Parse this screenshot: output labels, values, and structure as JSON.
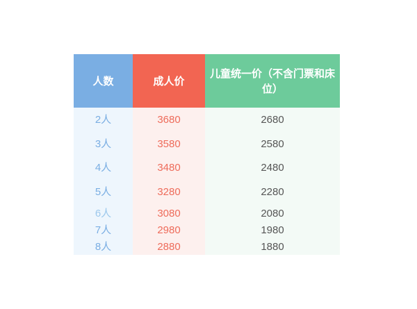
{
  "colors": {
    "header_people": "#7aaee3",
    "header_adult": "#f26552",
    "header_child": "#6dcb9b",
    "people_text": "#7aaee3",
    "adult_text": "#ee6b5a",
    "child_text": "#555555"
  },
  "table": {
    "headers": [
      "人数",
      "成人价",
      "儿童统一价（不含门票和床位）"
    ],
    "rows": [
      [
        "2人",
        "3680",
        "2680"
      ],
      [
        "3人",
        "3580",
        "2580"
      ],
      [
        "4人",
        "3480",
        "2480"
      ],
      [
        "5人",
        "3280",
        "2280"
      ],
      [
        "6人",
        "3080",
        "2080"
      ],
      [
        "7人",
        "2980",
        "1980"
      ],
      [
        "8人",
        "2880",
        "1880"
      ]
    ]
  }
}
